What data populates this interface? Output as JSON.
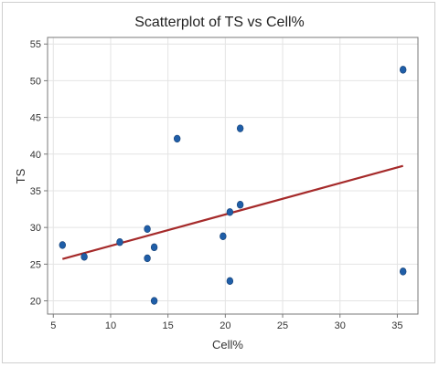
{
  "chart_data": {
    "type": "scatter",
    "title": "Scatterplot of TS vs Cell%",
    "xlabel": "Cell%",
    "ylabel": "TS",
    "xlim": [
      4.5,
      36.8
    ],
    "ylim": [
      18.2,
      55.9
    ],
    "xticks": [
      5,
      10,
      15,
      20,
      25,
      30,
      35
    ],
    "yticks": [
      20,
      25,
      30,
      35,
      40,
      45,
      50,
      55
    ],
    "grid": true,
    "series": [
      {
        "marker_color": "#1f5ea8",
        "points": [
          {
            "x": 5.8,
            "y": 27.6
          },
          {
            "x": 7.7,
            "y": 26.0
          },
          {
            "x": 10.8,
            "y": 28.0
          },
          {
            "x": 13.2,
            "y": 29.8
          },
          {
            "x": 13.2,
            "y": 25.8
          },
          {
            "x": 13.8,
            "y": 27.3
          },
          {
            "x": 13.8,
            "y": 20.0
          },
          {
            "x": 15.8,
            "y": 42.1
          },
          {
            "x": 19.8,
            "y": 28.8
          },
          {
            "x": 20.4,
            "y": 32.1
          },
          {
            "x": 20.4,
            "y": 22.7
          },
          {
            "x": 21.3,
            "y": 43.5
          },
          {
            "x": 21.3,
            "y": 33.1
          },
          {
            "x": 35.5,
            "y": 51.5
          },
          {
            "x": 35.5,
            "y": 24.0
          }
        ]
      }
    ],
    "fit_line": {
      "color": "#a52a2a",
      "x": [
        5.8,
        35.5
      ],
      "y": [
        25.7,
        38.4
      ]
    }
  }
}
